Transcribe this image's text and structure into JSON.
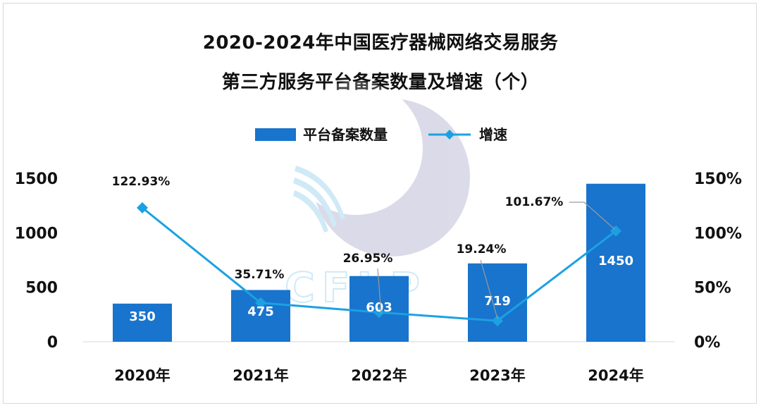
{
  "chart_data": {
    "type": "bar",
    "title": "2020-2024年中国医疗器械网络交易服务",
    "subtitle": "第三方服务平台备案数量及增速（个）",
    "categories": [
      "2020年",
      "2021年",
      "2022年",
      "2023年",
      "2024年"
    ],
    "series": [
      {
        "name": "平台备案数量",
        "type": "bar",
        "axis": "left",
        "values": [
          350,
          475,
          603,
          719,
          1450
        ],
        "color": "#1874CD"
      },
      {
        "name": "增速",
        "type": "line",
        "axis": "right",
        "values": [
          122.93,
          35.71,
          26.95,
          19.24,
          101.67
        ],
        "color": "#1BA1E2"
      }
    ],
    "bar_labels": [
      "350",
      "475",
      "603",
      "719",
      "1450"
    ],
    "line_labels": [
      "122.93%",
      "35.71%",
      "26.95%",
      "19.24%",
      "101.67%"
    ],
    "y_left": {
      "ylim": [
        0,
        1500
      ],
      "ticks": [
        "0",
        "500",
        "1000",
        "1500"
      ]
    },
    "y_right": {
      "ylim": [
        0,
        150
      ],
      "ticks": [
        "0%",
        "50%",
        "100%",
        "150%"
      ]
    },
    "legend": {
      "position": "top-center",
      "items": [
        "平台备案数量",
        "增速"
      ]
    },
    "watermark": "CFLP",
    "grid": false
  }
}
